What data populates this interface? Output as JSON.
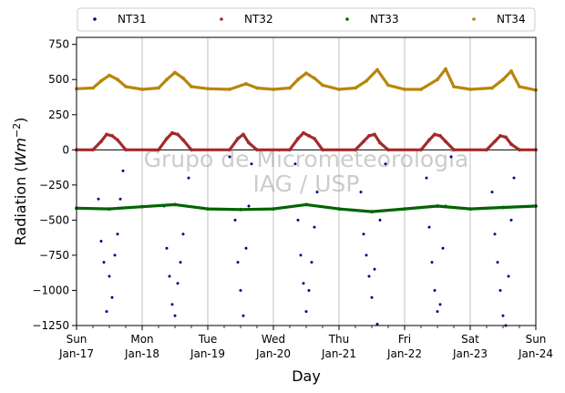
{
  "chart_data": {
    "type": "scatter",
    "xlabel": "Day",
    "ylabel": "Radiation",
    "ylabel_unit_base": "Wm",
    "ylabel_unit_exp": "−2",
    "ylim": [
      -1250,
      800
    ],
    "yticks": [
      -1250,
      -1000,
      -750,
      -500,
      -250,
      0,
      250,
      500,
      750
    ],
    "ytick_labels": [
      "−1250",
      "−1000",
      "−750",
      "−500",
      "−250",
      "0",
      "250",
      "500",
      "750"
    ],
    "x_start": "2016-01-17",
    "x_end": "2016-01-24",
    "xticks": [
      {
        "x": "2016-01-17",
        "weekday": "Sun",
        "date": "Jan-17"
      },
      {
        "x": "2016-01-18",
        "weekday": "Mon",
        "date": "Jan-18"
      },
      {
        "x": "2016-01-19",
        "weekday": "Tue",
        "date": "Jan-19"
      },
      {
        "x": "2016-01-20",
        "weekday": "Wed",
        "date": "Jan-20"
      },
      {
        "x": "2016-01-21",
        "weekday": "Thu",
        "date": "Jan-21"
      },
      {
        "x": "2016-01-22",
        "weekday": "Fri",
        "date": "Jan-22"
      },
      {
        "x": "2016-01-23",
        "weekday": "Sat",
        "date": "Jan-23"
      },
      {
        "x": "2016-01-24",
        "weekday": "Sun",
        "date": "Jan-24"
      }
    ],
    "grid": "vertical",
    "zero_line": true,
    "legend_position": "top",
    "watermark": [
      "Grupo de Micrometeorologia",
      "IAG / USP"
    ],
    "series": [
      {
        "name": "NT31",
        "color": "#00008b",
        "points": [
          [
            "2016-01-17 06:00",
            0
          ],
          [
            "2016-01-17 08:00",
            -350
          ],
          [
            "2016-01-17 09:00",
            -650
          ],
          [
            "2016-01-17 10:00",
            -800
          ],
          [
            "2016-01-17 11:00",
            -1150
          ],
          [
            "2016-01-17 12:00",
            -900
          ],
          [
            "2016-01-17 13:00",
            -1050
          ],
          [
            "2016-01-17 14:00",
            -750
          ],
          [
            "2016-01-17 15:00",
            -600
          ],
          [
            "2016-01-17 16:00",
            -350
          ],
          [
            "2016-01-17 17:00",
            -150
          ],
          [
            "2016-01-17 18:00",
            0
          ],
          [
            "2016-01-18 06:00",
            0
          ],
          [
            "2016-01-18 08:00",
            -400
          ],
          [
            "2016-01-18 09:00",
            -700
          ],
          [
            "2016-01-18 10:00",
            -900
          ],
          [
            "2016-01-18 11:00",
            -1100
          ],
          [
            "2016-01-18 12:00",
            -1180
          ],
          [
            "2016-01-18 13:00",
            -950
          ],
          [
            "2016-01-18 14:00",
            -800
          ],
          [
            "2016-01-18 15:00",
            -600
          ],
          [
            "2016-01-18 16:00",
            -400
          ],
          [
            "2016-01-18 17:00",
            -200
          ],
          [
            "2016-01-18 18:00",
            0
          ],
          [
            "2016-01-19 08:00",
            -50
          ],
          [
            "2016-01-19 10:00",
            -500
          ],
          [
            "2016-01-19 11:00",
            -800
          ],
          [
            "2016-01-19 12:00",
            -1000
          ],
          [
            "2016-01-19 13:00",
            -1180
          ],
          [
            "2016-01-19 14:00",
            -700
          ],
          [
            "2016-01-19 15:00",
            -400
          ],
          [
            "2016-01-19 16:00",
            -100
          ],
          [
            "2016-01-19 18:00",
            0
          ],
          [
            "2016-01-20 08:00",
            -100
          ],
          [
            "2016-01-20 09:00",
            -500
          ],
          [
            "2016-01-20 10:00",
            -750
          ],
          [
            "2016-01-20 11:00",
            -950
          ],
          [
            "2016-01-20 12:00",
            -1150
          ],
          [
            "2016-01-20 13:00",
            -1000
          ],
          [
            "2016-01-20 14:00",
            -800
          ],
          [
            "2016-01-20 15:00",
            -550
          ],
          [
            "2016-01-20 16:00",
            -300
          ],
          [
            "2016-01-20 18:00",
            0
          ],
          [
            "2016-01-21 06:00",
            0
          ],
          [
            "2016-01-21 08:00",
            -300
          ],
          [
            "2016-01-21 09:00",
            -600
          ],
          [
            "2016-01-21 10:00",
            -750
          ],
          [
            "2016-01-21 11:00",
            -900
          ],
          [
            "2016-01-21 12:00",
            -1050
          ],
          [
            "2016-01-21 13:00",
            -850
          ],
          [
            "2016-01-21 14:00",
            -1240
          ],
          [
            "2016-01-21 15:00",
            -500
          ],
          [
            "2016-01-21 17:00",
            -100
          ],
          [
            "2016-01-22 08:00",
            -200
          ],
          [
            "2016-01-22 09:00",
            -550
          ],
          [
            "2016-01-22 10:00",
            -800
          ],
          [
            "2016-01-22 11:00",
            -1000
          ],
          [
            "2016-01-22 12:00",
            -1150
          ],
          [
            "2016-01-22 13:00",
            -1100
          ],
          [
            "2016-01-22 14:00",
            -700
          ],
          [
            "2016-01-22 15:00",
            -400
          ],
          [
            "2016-01-22 17:00",
            -50
          ],
          [
            "2016-01-23 06:00",
            0
          ],
          [
            "2016-01-23 08:00",
            -300
          ],
          [
            "2016-01-23 09:00",
            -600
          ],
          [
            "2016-01-23 10:00",
            -800
          ],
          [
            "2016-01-23 11:00",
            -1000
          ],
          [
            "2016-01-23 12:00",
            -1180
          ],
          [
            "2016-01-23 13:00",
            -1250
          ],
          [
            "2016-01-23 14:00",
            -900
          ],
          [
            "2016-01-23 15:00",
            -500
          ],
          [
            "2016-01-23 16:00",
            -200
          ],
          [
            "2016-01-23 18:00",
            0
          ]
        ]
      },
      {
        "name": "NT32",
        "color": "#a52a2a",
        "points": [
          [
            "2016-01-17 00:00",
            0
          ],
          [
            "2016-01-17 06:00",
            0
          ],
          [
            "2016-01-17 09:00",
            60
          ],
          [
            "2016-01-17 11:00",
            110
          ],
          [
            "2016-01-17 13:00",
            100
          ],
          [
            "2016-01-17 15:00",
            70
          ],
          [
            "2016-01-17 18:00",
            0
          ],
          [
            "2016-01-18 06:00",
            0
          ],
          [
            "2016-01-18 09:00",
            80
          ],
          [
            "2016-01-18 11:00",
            120
          ],
          [
            "2016-01-18 13:00",
            110
          ],
          [
            "2016-01-18 15:00",
            70
          ],
          [
            "2016-01-18 18:00",
            0
          ],
          [
            "2016-01-19 08:00",
            0
          ],
          [
            "2016-01-19 11:00",
            80
          ],
          [
            "2016-01-19 13:00",
            110
          ],
          [
            "2016-01-19 15:00",
            50
          ],
          [
            "2016-01-19 18:00",
            0
          ],
          [
            "2016-01-20 06:00",
            0
          ],
          [
            "2016-01-20 09:00",
            80
          ],
          [
            "2016-01-20 11:00",
            120
          ],
          [
            "2016-01-20 13:00",
            100
          ],
          [
            "2016-01-20 15:00",
            80
          ],
          [
            "2016-01-20 18:00",
            0
          ],
          [
            "2016-01-21 06:00",
            0
          ],
          [
            "2016-01-21 09:00",
            60
          ],
          [
            "2016-01-21 11:00",
            100
          ],
          [
            "2016-01-21 13:00",
            110
          ],
          [
            "2016-01-21 15:00",
            50
          ],
          [
            "2016-01-21 18:00",
            0
          ],
          [
            "2016-01-22 06:00",
            0
          ],
          [
            "2016-01-22 09:00",
            70
          ],
          [
            "2016-01-22 11:00",
            110
          ],
          [
            "2016-01-22 13:00",
            100
          ],
          [
            "2016-01-22 15:00",
            60
          ],
          [
            "2016-01-22 18:00",
            0
          ],
          [
            "2016-01-23 06:00",
            0
          ],
          [
            "2016-01-23 09:00",
            60
          ],
          [
            "2016-01-23 11:00",
            100
          ],
          [
            "2016-01-23 13:00",
            90
          ],
          [
            "2016-01-23 15:00",
            40
          ],
          [
            "2016-01-23 18:00",
            0
          ],
          [
            "2016-01-24 00:00",
            0
          ]
        ]
      },
      {
        "name": "NT33",
        "color": "#006400",
        "points": [
          [
            "2016-01-17 00:00",
            -415
          ],
          [
            "2016-01-17 12:00",
            -420
          ],
          [
            "2016-01-18 00:00",
            -405
          ],
          [
            "2016-01-18 12:00",
            -390
          ],
          [
            "2016-01-19 00:00",
            -420
          ],
          [
            "2016-01-19 12:00",
            -425
          ],
          [
            "2016-01-20 00:00",
            -420
          ],
          [
            "2016-01-20 12:00",
            -390
          ],
          [
            "2016-01-21 00:00",
            -420
          ],
          [
            "2016-01-21 12:00",
            -440
          ],
          [
            "2016-01-22 00:00",
            -420
          ],
          [
            "2016-01-22 12:00",
            -400
          ],
          [
            "2016-01-23 00:00",
            -420
          ],
          [
            "2016-01-23 12:00",
            -410
          ],
          [
            "2016-01-24 00:00",
            -400
          ]
        ]
      },
      {
        "name": "NT34",
        "color": "#b8860b",
        "points": [
          [
            "2016-01-17 00:00",
            435
          ],
          [
            "2016-01-17 06:00",
            440
          ],
          [
            "2016-01-17 09:00",
            490
          ],
          [
            "2016-01-17 12:00",
            530
          ],
          [
            "2016-01-17 15:00",
            500
          ],
          [
            "2016-01-17 18:00",
            450
          ],
          [
            "2016-01-18 00:00",
            430
          ],
          [
            "2016-01-18 06:00",
            440
          ],
          [
            "2016-01-18 09:00",
            500
          ],
          [
            "2016-01-18 12:00",
            550
          ],
          [
            "2016-01-18 15:00",
            510
          ],
          [
            "2016-01-18 18:00",
            450
          ],
          [
            "2016-01-19 00:00",
            435
          ],
          [
            "2016-01-19 08:00",
            430
          ],
          [
            "2016-01-19 14:00",
            470
          ],
          [
            "2016-01-19 18:00",
            440
          ],
          [
            "2016-01-20 00:00",
            430
          ],
          [
            "2016-01-20 06:00",
            440
          ],
          [
            "2016-01-20 09:00",
            500
          ],
          [
            "2016-01-20 12:00",
            545
          ],
          [
            "2016-01-20 15:00",
            510
          ],
          [
            "2016-01-20 18:00",
            460
          ],
          [
            "2016-01-21 00:00",
            430
          ],
          [
            "2016-01-21 06:00",
            440
          ],
          [
            "2016-01-21 10:00",
            490
          ],
          [
            "2016-01-21 14:00",
            570
          ],
          [
            "2016-01-21 18:00",
            460
          ],
          [
            "2016-01-22 00:00",
            430
          ],
          [
            "2016-01-22 06:00",
            430
          ],
          [
            "2016-01-22 12:00",
            500
          ],
          [
            "2016-01-22 15:00",
            575
          ],
          [
            "2016-01-22 18:00",
            450
          ],
          [
            "2016-01-23 00:00",
            430
          ],
          [
            "2016-01-23 08:00",
            440
          ],
          [
            "2016-01-23 12:00",
            500
          ],
          [
            "2016-01-23 15:00",
            560
          ],
          [
            "2016-01-23 18:00",
            450
          ],
          [
            "2016-01-24 00:00",
            425
          ]
        ]
      }
    ]
  }
}
